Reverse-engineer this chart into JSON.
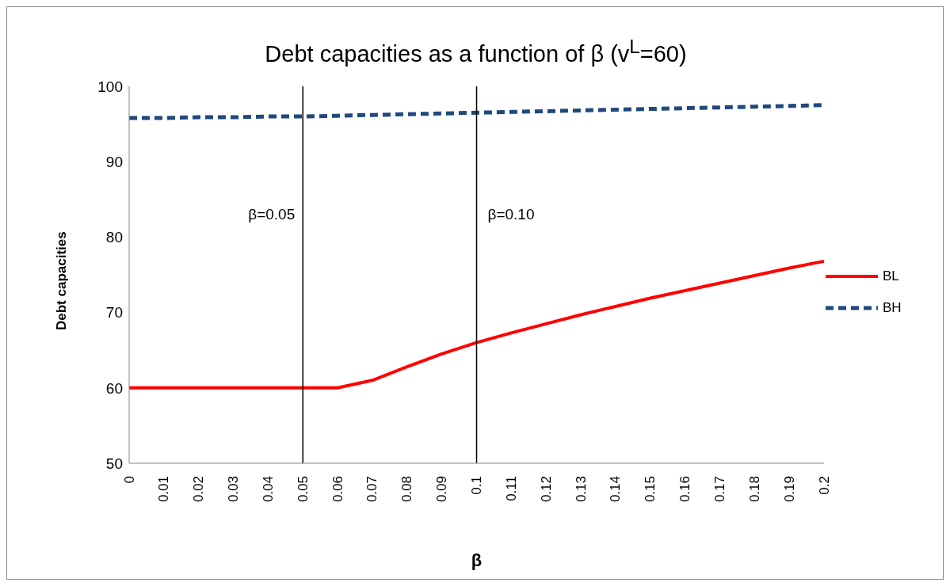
{
  "chart_data": {
    "type": "line",
    "title": "Debt capacities as a function of β (v$^{L}$=60)",
    "xlabel": "β",
    "ylabel": "Debt capacities",
    "categories": [
      "0",
      "0.01",
      "0.02",
      "0.03",
      "0.04",
      "0.05",
      "0.06",
      "0.07",
      "0.08",
      "0.09",
      "0.1",
      "0.11",
      "0.12",
      "0.13",
      "0.14",
      "0.15",
      "0.16",
      "0.17",
      "0.18",
      "0.19",
      "0.2"
    ],
    "series": [
      {
        "name": "BL",
        "color": "#ff0000",
        "line_style": "solid",
        "values": [
          60,
          60,
          60,
          60,
          60,
          60,
          60,
          61.0,
          62.8,
          64.5,
          66.0,
          67.3,
          68.5,
          69.7,
          70.8,
          71.9,
          72.9,
          73.9,
          74.9,
          75.9,
          76.8
        ]
      },
      {
        "name": "BH",
        "color": "#1f497d",
        "line_style": "dashed",
        "values": [
          95.8,
          95.8,
          95.9,
          95.9,
          96.0,
          96.0,
          96.1,
          96.2,
          96.3,
          96.4,
          96.5,
          96.6,
          96.7,
          96.8,
          96.9,
          97.0,
          97.1,
          97.2,
          97.3,
          97.4,
          97.5
        ]
      }
    ],
    "ylim": [
      50,
      100
    ],
    "yticks": [
      50,
      60,
      70,
      80,
      90,
      100
    ],
    "grid": false,
    "legend": "right",
    "marker": "none",
    "ref_lines": [
      {
        "axis": "x",
        "value": "0.05",
        "label": "β=0.05",
        "color": "#000000"
      },
      {
        "axis": "x",
        "value": "0.1",
        "label": "β=0.10",
        "color": "#000000"
      }
    ]
  }
}
